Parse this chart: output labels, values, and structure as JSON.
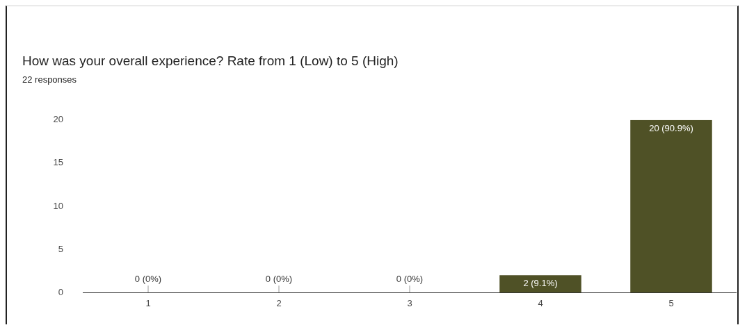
{
  "chart_data": {
    "type": "bar",
    "title": "How was your overall experience? Rate from 1 (Low) to 5 (High)",
    "subtitle": "22 responses",
    "categories": [
      "1",
      "2",
      "3",
      "4",
      "5"
    ],
    "values": [
      0,
      0,
      0,
      2,
      20
    ],
    "value_labels": [
      "0 (0%)",
      "0 (0%)",
      "0 (0%)",
      "2 (9.1%)",
      "20 (90.9%)"
    ],
    "color": "#4f5126",
    "ylim": [
      0,
      20
    ],
    "yticks": [
      0,
      5,
      10,
      15,
      20
    ],
    "grid": false,
    "legend": false
  }
}
